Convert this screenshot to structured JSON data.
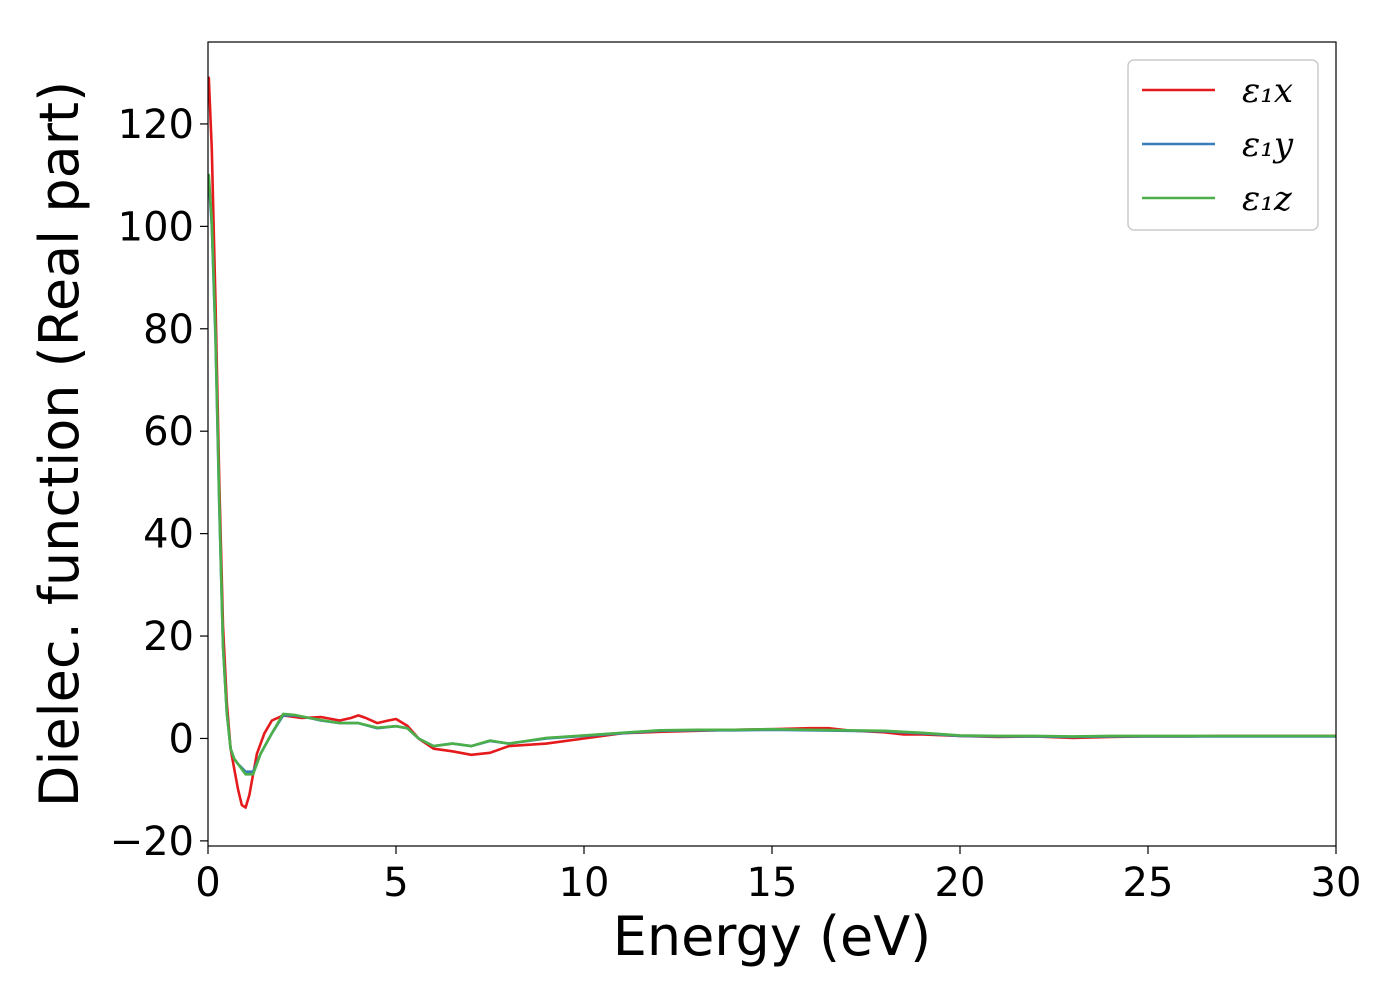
{
  "chart_data": {
    "type": "line",
    "title": "",
    "xlabel": "Energy (eV)",
    "ylabel": "Dielec. function (Real part)",
    "xlim": [
      0,
      30
    ],
    "ylim": [
      -21,
      136
    ],
    "xticks": [
      0,
      5,
      10,
      15,
      20,
      25,
      30
    ],
    "xtick_labels": [
      "0",
      "5",
      "10",
      "15",
      "20",
      "25",
      "30"
    ],
    "yticks": [
      -20,
      0,
      20,
      40,
      60,
      80,
      100,
      120
    ],
    "ytick_labels": [
      "−20",
      "0",
      "20",
      "40",
      "60",
      "80",
      "100",
      "120"
    ],
    "grid": false,
    "legend_position": "top-right",
    "series": [
      {
        "name": "ε₁x",
        "color": "#e41a1c",
        "x": [
          0.02,
          0.1,
          0.2,
          0.3,
          0.4,
          0.5,
          0.6,
          0.7,
          0.8,
          0.9,
          1.0,
          1.1,
          1.2,
          1.3,
          1.5,
          1.7,
          2.0,
          2.2,
          2.5,
          3.0,
          3.5,
          3.8,
          4.0,
          4.2,
          4.5,
          4.8,
          5.0,
          5.3,
          5.6,
          6.0,
          6.5,
          7.0,
          7.5,
          8.0,
          9.0,
          10.0,
          11.0,
          12.0,
          13.0,
          14.0,
          15.0,
          16.0,
          16.5,
          17.0,
          18.0,
          18.5,
          19.0,
          20.0,
          21.0,
          22.0,
          23.0,
          24.0,
          25.0,
          26.0,
          27.0,
          28.0,
          29.0,
          30.0
        ],
        "values": [
          129,
          115,
          85,
          50,
          22,
          7,
          -2,
          -6,
          -10,
          -13,
          -13.5,
          -11,
          -7,
          -3,
          1,
          3.5,
          4.5,
          4.3,
          4,
          4.2,
          3.5,
          4,
          4.5,
          4,
          3,
          3.5,
          3.8,
          2.5,
          0,
          -2,
          -2.5,
          -3.2,
          -2.8,
          -1.5,
          -1,
          0,
          1,
          1.3,
          1.5,
          1.7,
          1.8,
          2,
          2,
          1.6,
          1.2,
          0.8,
          0.8,
          0.5,
          0.3,
          0.4,
          0.1,
          0.3,
          0.4,
          0.4,
          0.5,
          0.5,
          0.5,
          0.5
        ]
      },
      {
        "name": "ε₁y",
        "color": "#377eb8",
        "x": [
          0.02,
          0.1,
          0.2,
          0.3,
          0.4,
          0.5,
          0.6,
          0.7,
          0.8,
          1.0,
          1.2,
          1.4,
          1.7,
          2.0,
          2.3,
          2.7,
          3.0,
          3.5,
          4.0,
          4.5,
          5.0,
          5.3,
          5.6,
          6.0,
          6.5,
          7.0,
          7.5,
          8.0,
          9.0,
          10.0,
          11.0,
          12.0,
          13.0,
          14.0,
          15.0,
          16.0,
          17.0,
          18.0,
          19.0,
          20.0,
          21.0,
          22.0,
          23.0,
          24.0,
          25.0,
          26.0,
          27.0,
          28.0,
          29.0,
          30.0
        ],
        "values": [
          109,
          100,
          78,
          45,
          18,
          5,
          -2,
          -4,
          -5,
          -6.5,
          -6.5,
          -3,
          1,
          4.5,
          4.5,
          4,
          3.5,
          3,
          3,
          2,
          2.4,
          2,
          0,
          -1.5,
          -1,
          -1.5,
          -0.5,
          -1,
          0,
          0.5,
          1,
          1.5,
          1.6,
          1.6,
          1.7,
          1.6,
          1.5,
          1.4,
          1,
          0.5,
          0.4,
          0.4,
          0.3,
          0.4,
          0.4,
          0.4,
          0.4,
          0.4,
          0.4,
          0.4
        ]
      },
      {
        "name": "ε₁z",
        "color": "#4daf4a",
        "x": [
          0.02,
          0.1,
          0.2,
          0.3,
          0.4,
          0.5,
          0.6,
          0.7,
          0.8,
          1.0,
          1.2,
          1.4,
          1.7,
          2.0,
          2.3,
          2.7,
          3.0,
          3.5,
          4.0,
          4.5,
          5.0,
          5.3,
          5.6,
          6.0,
          6.5,
          7.0,
          7.5,
          8.0,
          9.0,
          10.0,
          11.0,
          12.0,
          13.0,
          14.0,
          15.0,
          16.0,
          17.0,
          18.0,
          19.0,
          20.0,
          21.0,
          22.0,
          23.0,
          24.0,
          25.0,
          26.0,
          27.0,
          28.0,
          29.0,
          30.0
        ],
        "values": [
          110,
          101,
          79,
          46,
          18,
          5,
          -2,
          -4,
          -5,
          -7,
          -7,
          -3,
          1,
          4.8,
          4.6,
          4,
          3.6,
          3,
          3,
          2.1,
          2.4,
          2,
          0,
          -1.5,
          -1,
          -1.5,
          -0.4,
          -1,
          0.1,
          0.6,
          1.1,
          1.6,
          1.7,
          1.7,
          1.8,
          1.7,
          1.6,
          1.5,
          1.1,
          0.6,
          0.5,
          0.5,
          0.4,
          0.5,
          0.5,
          0.5,
          0.5,
          0.5,
          0.5,
          0.5
        ]
      }
    ]
  }
}
